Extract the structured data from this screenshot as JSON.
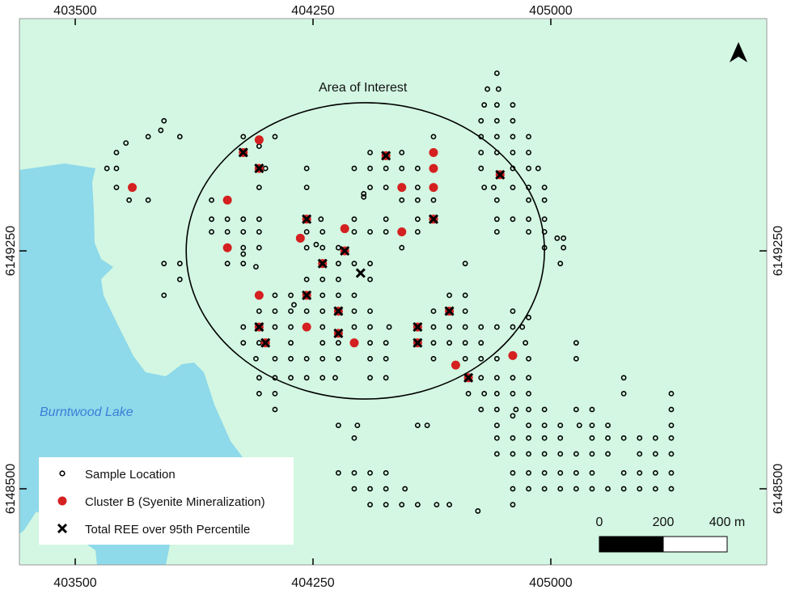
{
  "map": {
    "colors": {
      "land": "#d3f7e2",
      "water": "#8ed9ea",
      "cluster_b": "#d42020",
      "sample": "#000000",
      "lake_label": "#3a7fd8"
    },
    "lake_label": "Burntwood Lake",
    "area_of_interest": {
      "label": "Area of Interest",
      "center": [
        404415,
        6149250
      ],
      "radii_m": [
        565,
        467
      ]
    },
    "x_ticks": [
      "403500",
      "404250",
      "405000"
    ],
    "x_tick_values": [
      403500,
      404250,
      405000
    ],
    "y_ticks": [
      "6149250",
      "6148500"
    ],
    "y_tick_values": [
      6149250,
      6148500
    ],
    "north_arrow": "north-arrow-icon",
    "scale_bar": {
      "labels": [
        "0",
        "200",
        "400 m"
      ],
      "values_m": [
        0,
        200,
        400
      ]
    }
  },
  "legend": {
    "items": [
      {
        "label": "Sample Location",
        "symbol": "open-circle"
      },
      {
        "label": "Cluster B (Syenite Mineralization)",
        "symbol": "red-dot"
      },
      {
        "label": "Total REE over 95th Percentile",
        "symbol": "x-mark"
      }
    ]
  },
  "chart_data": {
    "type": "scatter",
    "x_axis": "Easting (m)",
    "y_axis": "Northing (m)",
    "xlim_ticks": [
      403500,
      405000
    ],
    "sample_rows": [
      {
        "n": 6149810,
        "e": [
          404830
        ]
      },
      {
        "n": 6149760,
        "e": [
          404800,
          404835
        ]
      },
      {
        "n": 6149710,
        "e": [
          404790,
          404830,
          404880
        ]
      },
      {
        "n": 6149660,
        "e": [
          403780,
          404780,
          404830,
          404880
        ]
      },
      {
        "n": 6149630,
        "e": [
          403770
        ]
      },
      {
        "n": 6149610,
        "e": [
          403730,
          403830,
          404030,
          404130,
          404630,
          404780,
          404830,
          404880,
          404930
        ]
      },
      {
        "n": 6149590,
        "e": [
          403660
        ]
      },
      {
        "n": 6149580,
        "e": [
          404080
        ]
      },
      {
        "n": 6149560,
        "e": [
          403630,
          404430,
          404530,
          404780,
          404830,
          404880,
          404930
        ]
      },
      {
        "n": 6149510,
        "e": [
          403600,
          403630,
          404100,
          404230,
          404380,
          404430,
          404480,
          404530,
          404580,
          404780,
          404880,
          404930,
          404960
        ]
      },
      {
        "n": 6149450,
        "e": [
          403630,
          404080,
          404230,
          404430,
          404480,
          404580,
          404790,
          404820,
          404880,
          404930,
          404980
        ]
      },
      {
        "n": 6149430,
        "e": [
          404410
        ]
      },
      {
        "n": 6149420,
        "e": [
          404410
        ]
      },
      {
        "n": 6149410,
        "e": [
          403670,
          403730,
          403930,
          404530,
          404580,
          404630,
          404830,
          404930,
          404980
        ]
      },
      {
        "n": 6149350,
        "e": [
          403930,
          403980,
          404030,
          404080,
          404275,
          404380,
          404480,
          404580,
          404830,
          404880,
          404930,
          404980
        ]
      },
      {
        "n": 6149310,
        "e": [
          403930,
          403980,
          404030,
          404080,
          404230,
          404280,
          404380,
          404430,
          404480,
          404580,
          404830,
          404930,
          404980
        ]
      },
      {
        "n": 6149290,
        "e": [
          405020,
          405040
        ]
      },
      {
        "n": 6149270,
        "e": [
          404260
        ]
      },
      {
        "n": 6149260,
        "e": [
          404030,
          404080,
          404230,
          404280,
          404330,
          404530,
          404980,
          405040
        ]
      },
      {
        "n": 6149240,
        "e": [
          404030
        ]
      },
      {
        "n": 6149210,
        "e": [
          403780,
          403830,
          403980,
          404030,
          404330,
          404380,
          404430,
          404730,
          405030
        ]
      },
      {
        "n": 6149200,
        "e": [
          404070
        ]
      },
      {
        "n": 6149160,
        "e": [
          403830,
          404230,
          404280,
          404330,
          404430
        ]
      },
      {
        "n": 6149110,
        "e": [
          403780,
          404130,
          404180,
          404280,
          404330,
          404380,
          404680,
          404730
        ]
      },
      {
        "n": 6149080,
        "e": [
          404190
        ]
      },
      {
        "n": 6149060,
        "e": [
          404080,
          404130,
          404180,
          404230,
          404280,
          404380,
          404430,
          404630,
          404730,
          404880
        ]
      },
      {
        "n": 6149040,
        "e": [
          404930
        ]
      },
      {
        "n": 6149010,
        "e": [
          404030,
          404130,
          404180,
          404280,
          404380,
          404430,
          404490,
          404630,
          404680,
          404730,
          404780,
          404830,
          404880,
          404910
        ]
      },
      {
        "n": 6148960,
        "e": [
          404030,
          404080,
          404180,
          404280,
          404330,
          404430,
          404480,
          404630,
          404680,
          404730,
          404780,
          404920,
          405080
        ]
      },
      {
        "n": 6148910,
        "e": [
          404070,
          404130,
          404180,
          404230,
          404280,
          404330,
          404430,
          404480,
          404630,
          404730,
          404780,
          404830,
          404930,
          405080
        ]
      },
      {
        "n": 6148850,
        "e": [
          404080,
          404130,
          404180,
          404230,
          404280,
          404320,
          404430,
          404480,
          404780,
          404830,
          404880,
          404930,
          405230
        ]
      },
      {
        "n": 6148800,
        "e": [
          404080,
          404130,
          404740,
          404790,
          404830,
          404880,
          404930,
          405230,
          405380
        ]
      },
      {
        "n": 6148750,
        "e": [
          404130,
          404780,
          404830,
          404890,
          404930,
          404980,
          405080,
          405130,
          405380
        ]
      },
      {
        "n": 6148730,
        "e": [
          404880
        ]
      },
      {
        "n": 6148700,
        "e": [
          404330,
          404390,
          404580,
          404610,
          404830,
          404930,
          404980,
          405030,
          405090,
          405130,
          405180,
          405380
        ]
      },
      {
        "n": 6148660,
        "e": [
          404380,
          404830,
          404880,
          404930,
          404980,
          405030,
          405130,
          405180,
          405230,
          405280,
          405330,
          405380
        ]
      },
      {
        "n": 6148610,
        "e": [
          404830,
          404880,
          404930,
          404980,
          405030,
          405080,
          405130,
          405180,
          405280,
          405330,
          405380
        ]
      },
      {
        "n": 6148550,
        "e": [
          404330,
          404380,
          404430,
          404480,
          404880,
          404930,
          404980,
          405030,
          405080,
          405130,
          405230,
          405280,
          405330,
          405380
        ]
      },
      {
        "n": 6148500,
        "e": [
          404380,
          404430,
          404480,
          404540,
          404880,
          404930,
          404980,
          405030,
          405080,
          405130,
          405180,
          405230,
          405280,
          405330,
          405380
        ]
      },
      {
        "n": 6148450,
        "e": [
          404430,
          404480,
          404530,
          404580,
          404640,
          404680,
          404880
        ]
      },
      {
        "n": 6148430,
        "e": [
          404770
        ]
      }
    ],
    "cluster_b": [
      [
        404080,
        6149600
      ],
      [
        403680,
        6149450
      ],
      [
        403980,
        6149410
      ],
      [
        403980,
        6149260
      ],
      [
        404210,
        6149290
      ],
      [
        404350,
        6149320
      ],
      [
        404530,
        6149310
      ],
      [
        404530,
        6149450
      ],
      [
        404630,
        6149560
      ],
      [
        404630,
        6149510
      ],
      [
        404630,
        6149450
      ],
      [
        404080,
        6149110
      ],
      [
        404230,
        6149010
      ],
      [
        404380,
        6148960
      ],
      [
        404700,
        6148890
      ],
      [
        404880,
        6148920
      ],
      [
        404030,
        6149560
      ],
      [
        404080,
        6149510
      ],
      [
        404840,
        6149490
      ],
      [
        404480,
        6149550
      ],
      [
        404230,
        6149350
      ],
      [
        404630,
        6149350
      ],
      [
        404350,
        6149250
      ],
      [
        404280,
        6149210
      ],
      [
        404230,
        6149110
      ],
      [
        404330,
        6149060
      ],
      [
        404680,
        6149060
      ],
      [
        404080,
        6149010
      ],
      [
        404330,
        6148990
      ],
      [
        404580,
        6149010
      ],
      [
        404580,
        6148960
      ],
      [
        404100,
        6148960
      ],
      [
        404740,
        6148850
      ]
    ],
    "ree_over_95th": [
      [
        404030,
        6149560
      ],
      [
        404080,
        6149510
      ],
      [
        404840,
        6149490
      ],
      [
        404480,
        6149550
      ],
      [
        404230,
        6149350
      ],
      [
        404630,
        6149350
      ],
      [
        404350,
        6149250
      ],
      [
        404280,
        6149210
      ],
      [
        404230,
        6149110
      ],
      [
        404330,
        6149060
      ],
      [
        404680,
        6149060
      ],
      [
        404080,
        6149010
      ],
      [
        404330,
        6148990
      ],
      [
        404580,
        6149010
      ],
      [
        404580,
        6148960
      ],
      [
        404100,
        6148960
      ],
      [
        404740,
        6148850
      ],
      [
        404400,
        6149180
      ]
    ]
  }
}
